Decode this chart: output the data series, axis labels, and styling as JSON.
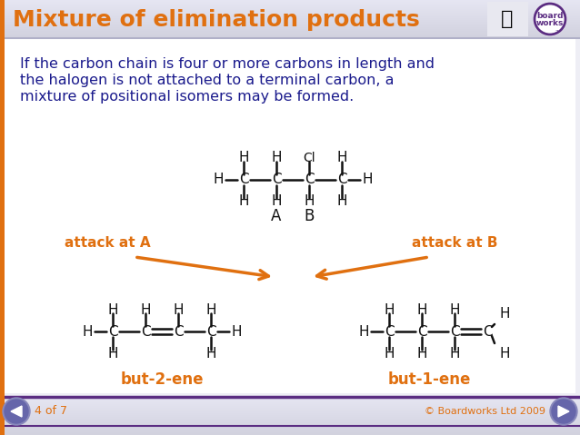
{
  "title": "Mixture of elimination products",
  "title_color": "#E8500A",
  "header_bg": "#D8D8E8",
  "body_bg": "#EEEEF5",
  "body_text_color": "#1A1A8C",
  "body_text_line1": "If the carbon chain is four or more carbons in length and",
  "body_text_line2": "the halogen is not attached to a terminal carbon, a",
  "body_text_line3": "mixture of positional isomers may be formed.",
  "orange_color": "#E07010",
  "dark_blue": "#1A1A8C",
  "purple": "#5B2D82",
  "footer_text": "4 of 7",
  "copyright_text": "© Boardworks Ltd 2009",
  "attack_a_label": "attack at A",
  "attack_b_label": "attack at B",
  "but2ene_label": "but-2-ene",
  "but1ene_label": "but-1-ene"
}
